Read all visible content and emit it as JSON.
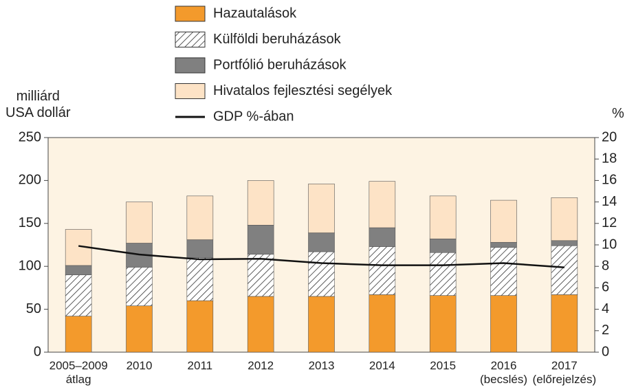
{
  "chart_data": {
    "type": "stacked_bar_line",
    "y_label": "milliárd\nUSA dollár",
    "y2_label": "%",
    "categories": [
      "2005–2009\nátlag",
      "2010",
      "2011",
      "2012",
      "2013",
      "2014",
      "2015",
      "2016\n(becslés)",
      "2017\n(előrejelzés)"
    ],
    "series": [
      {
        "name": "Hazautalások",
        "color": "#f39a2c",
        "values": [
          42,
          54,
          60,
          65,
          65,
          67,
          66,
          66,
          67
        ]
      },
      {
        "name": "Külföldi beruházások",
        "color": "#ffffff",
        "hatch": true,
        "values": [
          48,
          45,
          50,
          49,
          52,
          56,
          50,
          56,
          57
        ]
      },
      {
        "name": "Portfólió beruházások",
        "color": "#808080",
        "values": [
          11,
          28,
          21,
          34,
          22,
          22,
          16,
          6,
          6
        ]
      },
      {
        "name": "Hivatalos fejlesztési segélyek",
        "color": "#fde3c6",
        "values": [
          42,
          48,
          51,
          52,
          57,
          54,
          50,
          49,
          50
        ]
      },
      {
        "name": "GDP %-ában",
        "color": "#111111",
        "type": "line",
        "axis": "y2",
        "values": [
          9.9,
          9.1,
          8.65,
          8.7,
          8.3,
          8.1,
          8.1,
          8.3,
          7.9
        ]
      }
    ],
    "ylim": [
      0,
      250
    ],
    "yticks": [
      0,
      50,
      100,
      150,
      200,
      250
    ],
    "y2lim": [
      0,
      20
    ],
    "y2ticks": [
      0,
      2,
      4,
      6,
      8,
      10,
      12,
      14,
      16,
      18,
      20
    ],
    "plot_background": "#fdf3e3",
    "grid": false
  }
}
